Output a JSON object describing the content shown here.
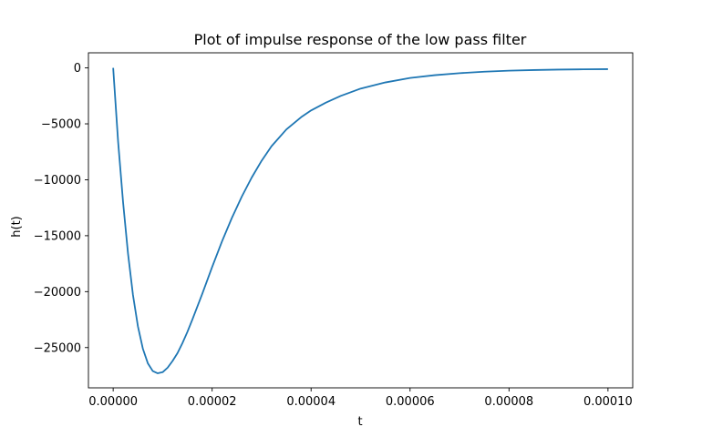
{
  "chart_data": {
    "type": "line",
    "title": "Plot of impulse response of the low pass filter",
    "xlabel": "t",
    "ylabel": "h(t)",
    "xlim": [
      -5e-06,
      0.000105
    ],
    "ylim": [
      -28600,
      1350
    ],
    "x_ticks": [
      {
        "value": 0.0,
        "label": "0.00000"
      },
      {
        "value": 2e-05,
        "label": "0.00002"
      },
      {
        "value": 4e-05,
        "label": "0.00004"
      },
      {
        "value": 6e-05,
        "label": "0.00006"
      },
      {
        "value": 8e-05,
        "label": "0.00008"
      },
      {
        "value": 0.0001,
        "label": "0.00010"
      }
    ],
    "y_ticks": [
      {
        "value": 0,
        "label": "0"
      },
      {
        "value": -5000,
        "label": "−5000"
      },
      {
        "value": -10000,
        "label": "−10000"
      },
      {
        "value": -15000,
        "label": "−15000"
      },
      {
        "value": -20000,
        "label": "−20000"
      },
      {
        "value": -25000,
        "label": "−25000"
      }
    ],
    "grid": false,
    "series": [
      {
        "color": "#1f77b4",
        "x": [
          0,
          1e-06,
          2e-06,
          3e-06,
          4e-06,
          5e-06,
          6e-06,
          7e-06,
          8e-06,
          9e-06,
          1e-05,
          1.1e-05,
          1.2e-05,
          1.3e-05,
          1.4e-05,
          1.5e-05,
          1.6e-05,
          1.8e-05,
          2e-05,
          2.2e-05,
          2.4e-05,
          2.6e-05,
          2.8e-05,
          3e-05,
          3.2e-05,
          3.5e-05,
          3.8e-05,
          4e-05,
          4.3e-05,
          4.6e-05,
          5e-05,
          5.5e-05,
          6e-05,
          6.5e-05,
          7e-05,
          7.5e-05,
          8e-05,
          8.5e-05,
          9e-05,
          9.5e-05,
          0.0001
        ],
        "y": [
          0,
          -6600,
          -12000,
          -16600,
          -20300,
          -23100,
          -25100,
          -26400,
          -27100,
          -27300,
          -27200,
          -26800,
          -26200,
          -25500,
          -24600,
          -23600,
          -22500,
          -20200,
          -17800,
          -15500,
          -13400,
          -11500,
          -9800,
          -8300,
          -7000,
          -5500,
          -4400,
          -3800,
          -3100,
          -2500,
          -1850,
          -1300,
          -900,
          -650,
          -470,
          -340,
          -250,
          -190,
          -150,
          -125,
          -110
        ]
      }
    ]
  }
}
